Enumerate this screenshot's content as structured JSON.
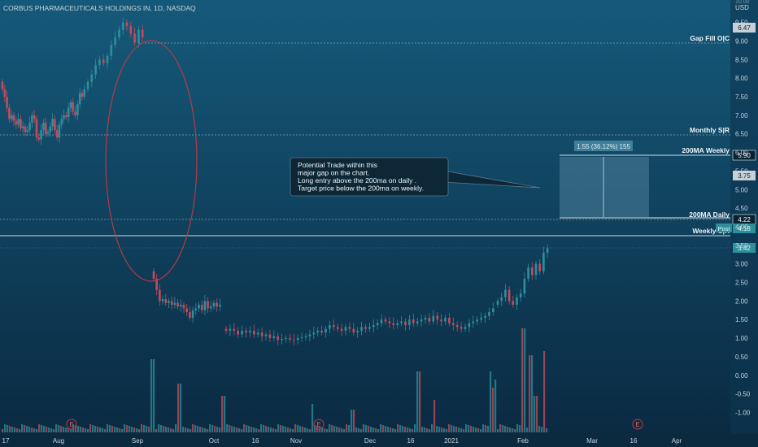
{
  "header": {
    "title": "CORBUS PHARMACEUTICALS HOLDINGS IN, 1D, NASDAQ",
    "currency": "USD"
  },
  "colors": {
    "bg_top": "#15597a",
    "bg_bottom": "#0a2940",
    "up": "#2d8f9b",
    "down": "#c8495a",
    "text": "#c9d4dc",
    "level_line": "#e6eef3",
    "ellipse": "#b83a45",
    "tag_bg": "#d9e2e8",
    "tag_text": "#10202c",
    "note_bg": "#0d2736",
    "box_fill": "#5a8ca6"
  },
  "price_axis": {
    "min": -1.4,
    "max": 10.0,
    "labels": [
      "9.50",
      "9.00",
      "8.50",
      "8.00",
      "7.50",
      "7.00",
      "6.50",
      "6.00",
      "5.50",
      "5.00",
      "4.50",
      "4.00",
      "3.50",
      "3.00",
      "2.50",
      "2.00",
      "1.50",
      "1.00",
      "0.50",
      "0.00",
      "-0.50",
      "-1.00"
    ],
    "top_partial_label": "10.00"
  },
  "time_axis": {
    "labels": [
      "17",
      "Aug",
      "Sep",
      "Oct",
      "16",
      "Nov",
      "Dec",
      "16",
      "2021",
      "Feb",
      "Mar",
      "16",
      "Apr"
    ]
  },
  "price_tags": {
    "last": "6.47",
    "target": "5.90",
    "mid": "3.75",
    "daily_ma": "4.22",
    "weekly_ma": "4.18",
    "weekly_ma_badge": "Post",
    "current": "3.42"
  },
  "levels": [
    {
      "label": "Gap Fill O|C",
      "price": 8.9
    },
    {
      "label": "Monthly S|R",
      "price": 6.47
    },
    {
      "label": "200MA Weekly",
      "price": 5.9
    },
    {
      "label": "200MA  Daily",
      "price": 4.22
    },
    {
      "label": "Weekly S|R",
      "price": 3.8
    }
  ],
  "measure_label": "1.55 (36.12%) 155",
  "note": {
    "lines": [
      "Potential Trade within this",
      "major gap on the chart.",
      "Long entry above the 200ma on daily .",
      "Target price below the 200ma on weekly."
    ]
  },
  "event_marker": "E",
  "chart_data": {
    "type": "candlestick",
    "title": "CORBUS PHARMACEUTICALS HOLDINGS IN, 1D, NASDAQ",
    "ylabel": "USD",
    "ylim": [
      -1.4,
      10.0
    ],
    "x_ticks": [
      "17",
      "Aug",
      "Sep",
      "Oct",
      "16",
      "Nov",
      "Dec",
      "16",
      "2021",
      "Feb",
      "Mar",
      "16",
      "Apr"
    ],
    "segments": [
      {
        "period": "Jul-Aug",
        "closes": [
          7.7,
          7.5,
          7.2,
          6.9,
          7.0,
          6.85,
          6.75,
          6.9,
          6.65,
          6.7,
          6.55,
          6.6,
          6.8,
          7.0,
          6.9,
          6.4,
          6.35,
          6.6,
          6.8,
          6.5,
          6.55,
          6.7,
          6.9,
          6.6,
          6.4,
          6.75,
          6.9,
          7.0,
          6.95,
          7.2,
          7.35,
          7.1,
          7.0,
          7.3,
          7.6,
          7.5,
          7.7
        ]
      },
      {
        "period": "late Aug - gap top",
        "closes": [
          7.9,
          8.1,
          8.35,
          8.5,
          8.4,
          8.6,
          8.9,
          9.1,
          9.3,
          9.5,
          9.4,
          9.2,
          8.95,
          9.3,
          9.1
        ]
      },
      {
        "period": "post-gap Sep",
        "closes": [
          2.6,
          2.3,
          2.0,
          2.05,
          1.95,
          2.0,
          1.9,
          1.95,
          1.85,
          1.9,
          1.8,
          1.7,
          1.55,
          1.75,
          1.8,
          1.9,
          1.75,
          2.0,
          1.8,
          1.85,
          1.95,
          1.85,
          1.9
        ]
      },
      {
        "period": "Oct-Jan",
        "closes": [
          1.2,
          1.25,
          1.2,
          1.1,
          1.2,
          1.15,
          1.2,
          1.1,
          1.15,
          1.05,
          1.1,
          1.0,
          1.05,
          0.95,
          0.98,
          1.0,
          0.96,
          0.95,
          1.0,
          1.02,
          1.05,
          1.1,
          1.15,
          1.2,
          1.15,
          1.25,
          1.35,
          1.3,
          1.25,
          1.2,
          1.3,
          1.25,
          1.15,
          1.2,
          1.3,
          1.25,
          1.3,
          1.35,
          1.4,
          1.5,
          1.45,
          1.4,
          1.35,
          1.4,
          1.45,
          1.35,
          1.5,
          1.4,
          1.45,
          1.5,
          1.55,
          1.45,
          1.6,
          1.5,
          1.45,
          1.55,
          1.4,
          1.35,
          1.3,
          1.25,
          1.3,
          1.4,
          1.45,
          1.5,
          1.55,
          1.6,
          1.7,
          1.8
        ]
      },
      {
        "period": "Feb",
        "closes": [
          2.0,
          2.1,
          2.3,
          2.0,
          1.9,
          2.1,
          2.2,
          2.6,
          2.9,
          2.7,
          3.0,
          2.8,
          3.3,
          3.42
        ]
      }
    ],
    "volume": "histogram at bottom of chart; spikes in early Sep, Nov, Jan and Feb"
  }
}
